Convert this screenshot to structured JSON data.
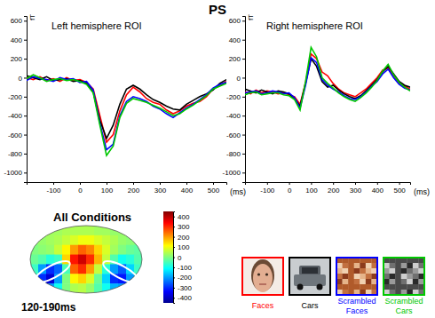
{
  "title": "PS",
  "chart_data": [
    {
      "type": "line",
      "title": "Left hemisphere ROI",
      "y_label": "fT",
      "x_label": "(ms)",
      "x": [
        -200,
        -175,
        -150,
        -125,
        -100,
        -75,
        -50,
        -25,
        0,
        25,
        50,
        75,
        100,
        125,
        150,
        175,
        200,
        225,
        250,
        275,
        300,
        325,
        350,
        375,
        400,
        425,
        450,
        475,
        500,
        525,
        550
      ],
      "xlim": [
        -200,
        550
      ],
      "xticks": [
        -100,
        0,
        100,
        200,
        300,
        400,
        500
      ],
      "ylim": [
        -1100,
        650
      ],
      "yticks": [
        600,
        400,
        200,
        0,
        -200,
        -400,
        -600,
        -800,
        -1000
      ],
      "series": [
        {
          "name": "Faces",
          "color": "#ff0000",
          "values": [
            0,
            -20,
            10,
            -30,
            -10,
            -40,
            0,
            -30,
            -20,
            -50,
            -120,
            -400,
            -680,
            -600,
            -350,
            -180,
            -100,
            -150,
            -220,
            -260,
            -280,
            -340,
            -380,
            -350,
            -300,
            -270,
            -250,
            -200,
            -120,
            -80,
            -40
          ]
        },
        {
          "name": "Cars",
          "color": "#000000",
          "values": [
            20,
            0,
            -20,
            10,
            -30,
            -20,
            -10,
            -40,
            -30,
            -60,
            -150,
            -450,
            -640,
            -500,
            -280,
            -120,
            -80,
            -120,
            -180,
            -230,
            -260,
            -300,
            -330,
            -340,
            -280,
            -240,
            -200,
            -170,
            -130,
            -60,
            -20
          ]
        },
        {
          "name": "Scrambled Faces",
          "color": "#0000ff",
          "values": [
            -30,
            10,
            -10,
            -20,
            -40,
            0,
            -20,
            -10,
            -50,
            -40,
            -130,
            -480,
            -760,
            -700,
            -400,
            -250,
            -200,
            -220,
            -250,
            -300,
            -330,
            -380,
            -420,
            -370,
            -320,
            -280,
            -230,
            -180,
            -110,
            -70,
            -50
          ]
        },
        {
          "name": "Scrambled Cars",
          "color": "#00c800",
          "values": [
            -10,
            30,
            0,
            -40,
            -20,
            -10,
            -30,
            -20,
            -40,
            -70,
            -160,
            -500,
            -820,
            -720,
            -420,
            -270,
            -220,
            -240,
            -260,
            -290,
            -320,
            -360,
            -400,
            -380,
            -330,
            -290,
            -240,
            -190,
            -120,
            -90,
            -60
          ]
        }
      ]
    },
    {
      "type": "line",
      "title": "Right hemisphere ROI",
      "y_label": "fT",
      "x_label": "(ms)",
      "x": [
        -200,
        -175,
        -150,
        -125,
        -100,
        -75,
        -50,
        -25,
        0,
        25,
        50,
        75,
        100,
        125,
        150,
        175,
        200,
        225,
        250,
        275,
        300,
        325,
        350,
        375,
        400,
        425,
        450,
        475,
        500,
        525,
        550
      ],
      "xlim": [
        -200,
        550
      ],
      "xticks": [
        -100,
        0,
        100,
        200,
        300,
        400,
        500
      ],
      "ylim": [
        -1100,
        650
      ],
      "yticks": [
        600,
        400,
        200,
        0,
        -200,
        -400,
        -600,
        -800,
        -1000
      ],
      "series": [
        {
          "color": "#ff0000",
          "values": [
            -150,
            -170,
            -130,
            -160,
            -140,
            -150,
            -170,
            -160,
            -180,
            -200,
            -280,
            -50,
            250,
            200,
            60,
            20,
            -60,
            -120,
            -160,
            -180,
            -200,
            -160,
            -120,
            -60,
            0,
            80,
            100,
            20,
            -60,
            -90,
            -120
          ]
        },
        {
          "color": "#000000",
          "values": [
            -120,
            -140,
            -160,
            -130,
            -150,
            -170,
            -140,
            -150,
            -170,
            -220,
            -300,
            -60,
            200,
            120,
            -40,
            -100,
            -80,
            -130,
            -170,
            -200,
            -220,
            -190,
            -140,
            -80,
            -20,
            60,
            120,
            40,
            -40,
            -80,
            -100
          ]
        },
        {
          "color": "#0000ff",
          "values": [
            -160,
            -150,
            -140,
            -170,
            -160,
            -140,
            -150,
            -170,
            -160,
            -210,
            -320,
            -80,
            210,
            160,
            -20,
            -80,
            -120,
            -150,
            -190,
            -220,
            -230,
            -200,
            -150,
            -90,
            -40,
            40,
            90,
            0,
            -70,
            -110,
            -130
          ]
        },
        {
          "color": "#00c800",
          "values": [
            -180,
            -160,
            -150,
            -180,
            -170,
            -160,
            -160,
            -180,
            -190,
            -230,
            -340,
            -40,
            320,
            220,
            0,
            -60,
            -110,
            -160,
            -200,
            -230,
            -250,
            -210,
            -160,
            -100,
            -30,
            70,
            140,
            30,
            -50,
            -100,
            -140
          ]
        }
      ]
    },
    {
      "type": "heatmap",
      "title": "All Conditions",
      "subtitle": "120-190ms",
      "cells": [
        [
          20,
          20,
          30,
          30,
          40,
          40,
          40,
          40,
          30,
          30,
          20,
          20,
          10,
          10
        ],
        [
          10,
          20,
          30,
          40,
          60,
          80,
          100,
          100,
          80,
          60,
          40,
          20,
          10,
          0
        ],
        [
          0,
          10,
          20,
          60,
          120,
          200,
          250,
          220,
          150,
          80,
          30,
          0,
          -20,
          -30
        ],
        [
          -20,
          -40,
          -80,
          -60,
          150,
          320,
          380,
          300,
          180,
          60,
          -40,
          -100,
          -80,
          -40
        ],
        [
          -60,
          -200,
          -300,
          -250,
          -50,
          250,
          300,
          200,
          60,
          -80,
          -200,
          -260,
          -150,
          -60
        ],
        [
          -100,
          -300,
          -380,
          -200,
          0,
          120,
          150,
          80,
          -20,
          -150,
          -300,
          -320,
          -200,
          -80
        ],
        [
          -60,
          -150,
          -200,
          -100,
          0,
          40,
          50,
          20,
          -40,
          -100,
          -180,
          -200,
          -120,
          -40
        ]
      ],
      "colorbar_range": [
        -450,
        450
      ],
      "colorbar_ticks": [
        400,
        300,
        200,
        100,
        0,
        -100,
        -200,
        -300,
        -400
      ]
    }
  ]
}
